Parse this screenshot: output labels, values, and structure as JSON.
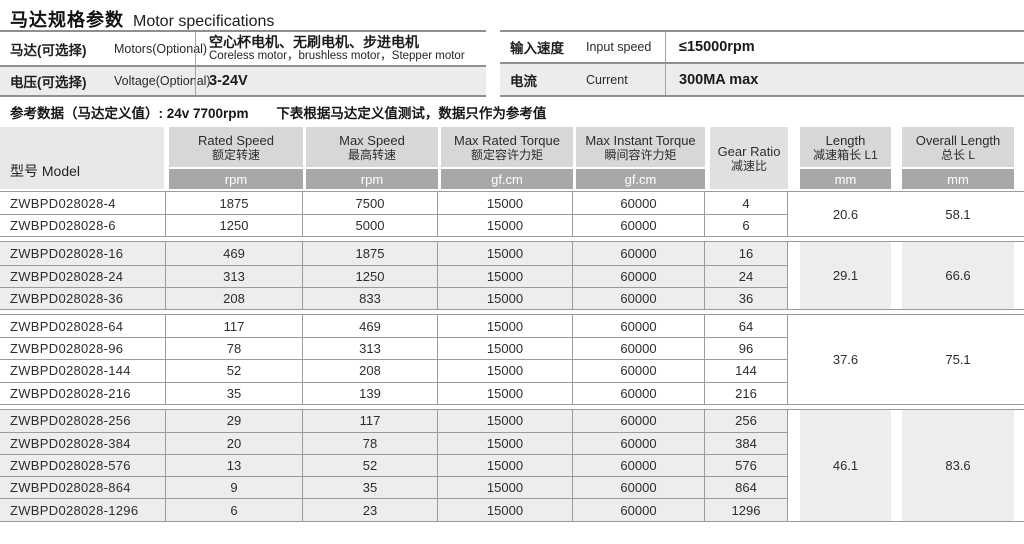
{
  "title": {
    "zh": "马达规格参数",
    "en": "Motor specifications"
  },
  "spec_tables": {
    "left": {
      "rows": [
        {
          "label_zh": "马达(可选择)",
          "label_en": "Motors(Optional)",
          "value_zh": "空心杯电机、无刷电机、步进电机",
          "value_en": "Coreless motor，brushless motor，Stepper motor"
        },
        {
          "label_zh": "电压(可选择)",
          "label_en": "Voltage(Optional)",
          "value": "3-24V"
        }
      ]
    },
    "right": {
      "rows": [
        {
          "label_zh": "输入速度",
          "label_en": "Input speed",
          "value": "≤15000rpm"
        },
        {
          "label_zh": "电流",
          "label_en": "Current",
          "value": "300MA max"
        }
      ]
    }
  },
  "reference_note": {
    "lead": "参考数据（马达定义值）: 24v 7700rpm",
    "tail": "下表根据马达定义值测试，数据只作为参考值"
  },
  "main_table": {
    "model_header": "型号 Model",
    "columns": [
      {
        "en": "Rated Speed",
        "zh": "额定转速",
        "unit": "rpm"
      },
      {
        "en": "Max Speed",
        "zh": "最高转速",
        "unit": "rpm"
      },
      {
        "en": "Max Rated Torque",
        "zh": "额定容许力矩",
        "unit": "gf.cm"
      },
      {
        "en": "Max Instant Torque",
        "zh": "瞬间容许力矩",
        "unit": "gf.cm"
      },
      {
        "en": "Gear Ratio",
        "zh": "减速比",
        "unit": null
      },
      {
        "en": "Length",
        "zh": "减速箱长 L1",
        "unit": "mm"
      },
      {
        "en": "Overall Length",
        "zh": "总长 L",
        "unit": "mm"
      }
    ],
    "groups": [
      {
        "length_l1": "20.6",
        "overall_l": "58.1",
        "rows": [
          {
            "model": "ZWBPD028028-4",
            "rated_speed": "1875",
            "max_speed": "7500",
            "max_rated_torque": "15000",
            "max_instant_torque": "60000",
            "gear_ratio": "4"
          },
          {
            "model": "ZWBPD028028-6",
            "rated_speed": "1250",
            "max_speed": "5000",
            "max_rated_torque": "15000",
            "max_instant_torque": "60000",
            "gear_ratio": "6"
          }
        ]
      },
      {
        "length_l1": "29.1",
        "overall_l": "66.6",
        "rows": [
          {
            "model": "ZWBPD028028-16",
            "rated_speed": "469",
            "max_speed": "1875",
            "max_rated_torque": "15000",
            "max_instant_torque": "60000",
            "gear_ratio": "16"
          },
          {
            "model": "ZWBPD028028-24",
            "rated_speed": "313",
            "max_speed": "1250",
            "max_rated_torque": "15000",
            "max_instant_torque": "60000",
            "gear_ratio": "24"
          },
          {
            "model": "ZWBPD028028-36",
            "rated_speed": "208",
            "max_speed": "833",
            "max_rated_torque": "15000",
            "max_instant_torque": "60000",
            "gear_ratio": "36"
          }
        ]
      },
      {
        "length_l1": "37.6",
        "overall_l": "75.1",
        "rows": [
          {
            "model": "ZWBPD028028-64",
            "rated_speed": "117",
            "max_speed": "469",
            "max_rated_torque": "15000",
            "max_instant_torque": "60000",
            "gear_ratio": "64"
          },
          {
            "model": "ZWBPD028028-96",
            "rated_speed": "78",
            "max_speed": "313",
            "max_rated_torque": "15000",
            "max_instant_torque": "60000",
            "gear_ratio": "96"
          },
          {
            "model": "ZWBPD028028-144",
            "rated_speed": "52",
            "max_speed": "208",
            "max_rated_torque": "15000",
            "max_instant_torque": "60000",
            "gear_ratio": "144"
          },
          {
            "model": "ZWBPD028028-216",
            "rated_speed": "35",
            "max_speed": "139",
            "max_rated_torque": "15000",
            "max_instant_torque": "60000",
            "gear_ratio": "216"
          }
        ]
      },
      {
        "length_l1": "46.1",
        "overall_l": "83.6",
        "rows": [
          {
            "model": "ZWBPD028028-256",
            "rated_speed": "29",
            "max_speed": "117",
            "max_rated_torque": "15000",
            "max_instant_torque": "60000",
            "gear_ratio": "256"
          },
          {
            "model": "ZWBPD028028-384",
            "rated_speed": "20",
            "max_speed": "78",
            "max_rated_torque": "15000",
            "max_instant_torque": "60000",
            "gear_ratio": "384"
          },
          {
            "model": "ZWBPD028028-576",
            "rated_speed": "13",
            "max_speed": "52",
            "max_rated_torque": "15000",
            "max_instant_torque": "60000",
            "gear_ratio": "576"
          },
          {
            "model": "ZWBPD028028-864",
            "rated_speed": "9",
            "max_speed": "35",
            "max_rated_torque": "15000",
            "max_instant_torque": "60000",
            "gear_ratio": "864"
          },
          {
            "model": "ZWBPD028028-1296",
            "rated_speed": "6",
            "max_speed": "23",
            "max_rated_torque": "15000",
            "max_instant_torque": "60000",
            "gear_ratio": "1296"
          }
        ]
      }
    ]
  },
  "colors": {
    "header_bg": "#d7d7d7",
    "unit_row_bg": "#a8a8a8",
    "model_header_bg": "#e8e8e8",
    "gear_header_bg": "#e0e0e0",
    "alt_group_bg": "#ededed",
    "grid_line": "#9b9b9b",
    "heavy_line": "#8f8f8f"
  }
}
